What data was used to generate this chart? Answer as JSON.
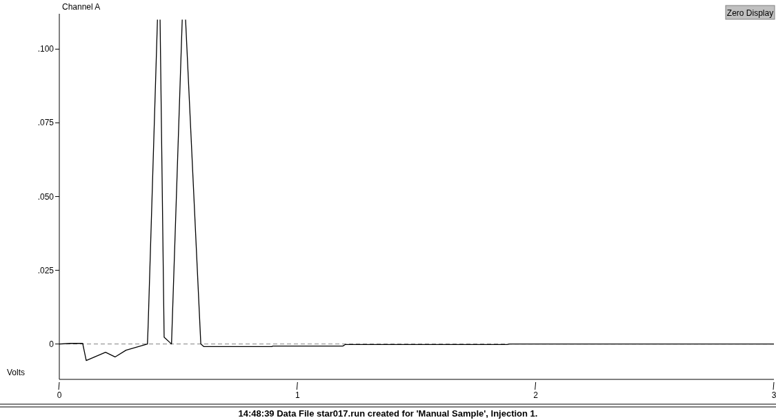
{
  "chart_data": {
    "type": "line",
    "title": "Channel A",
    "ylabel": "Volts",
    "annotations": [
      "Zero Display",
      "14:48:39   Data File star017.run created for 'Manual Sample', Injection 1."
    ],
    "x": [
      0,
      0.046,
      0.098,
      0.113,
      0.194,
      0.234,
      0.28,
      0.37,
      0.373,
      0.412,
      null,
      0.423,
      0.44,
      0.471,
      0.516,
      null,
      0.53,
      0.594,
      0.607,
      0.893,
      0.895,
      1.19,
      1.2,
      1.88,
      1.89,
      3
    ],
    "series": [
      {
        "color": "#000000",
        "values": [
          0,
          0.0002,
          0.0002,
          -0.0056,
          -0.0028,
          -0.0044,
          -0.0021,
          0,
          0.0065,
          0.11,
          null,
          0.11,
          0.0023,
          0,
          0.11,
          null,
          0.11,
          0,
          -0.0009,
          -0.0009,
          -0.0007,
          -0.0007,
          -0.0002,
          -0.0002,
          0,
          0
        ]
      }
    ],
    "xlim": [
      0,
      3
    ],
    "xticks": [
      0,
      1,
      2,
      3
    ],
    "ylim": [
      -0.012,
      0.112
    ],
    "yticks": [
      0,
      {
        "value": 0.025,
        "label": ".025"
      },
      {
        "value": 0.05,
        "label": ".050"
      },
      {
        "value": 0.075,
        "label": ".075"
      },
      {
        "value": 0.1,
        "label": ".100"
      }
    ],
    "ref_lines": [
      {
        "axis": "y",
        "value": 0,
        "color": "#808080",
        "line_style": "dashed"
      }
    ],
    "grid": false,
    "marker": "none",
    "line_style": "solid"
  }
}
